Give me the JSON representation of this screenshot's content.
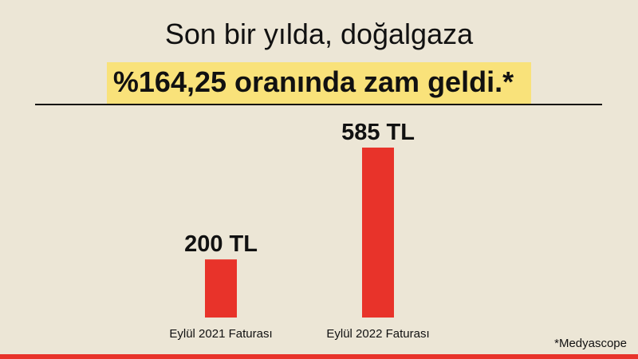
{
  "title_line1": "Son bir yılda, doğalgaza",
  "title_line2": "%164,25 oranında zam geldi.*",
  "source": "*Medyascope",
  "colors": {
    "background": "#ece6d6",
    "highlight": "#f9e27a",
    "bar": "#e8332a",
    "bottom_bar": "#e8332a"
  },
  "chart_data": {
    "type": "bar",
    "categories": [
      "Eylül 2021 Faturası",
      "Eylül 2022 Faturası"
    ],
    "values": [
      200,
      585
    ],
    "data_labels": [
      "200 TL",
      "585 TL"
    ],
    "unit": "TL",
    "ylim": [
      0,
      585
    ],
    "grid": false,
    "legend": "none"
  }
}
